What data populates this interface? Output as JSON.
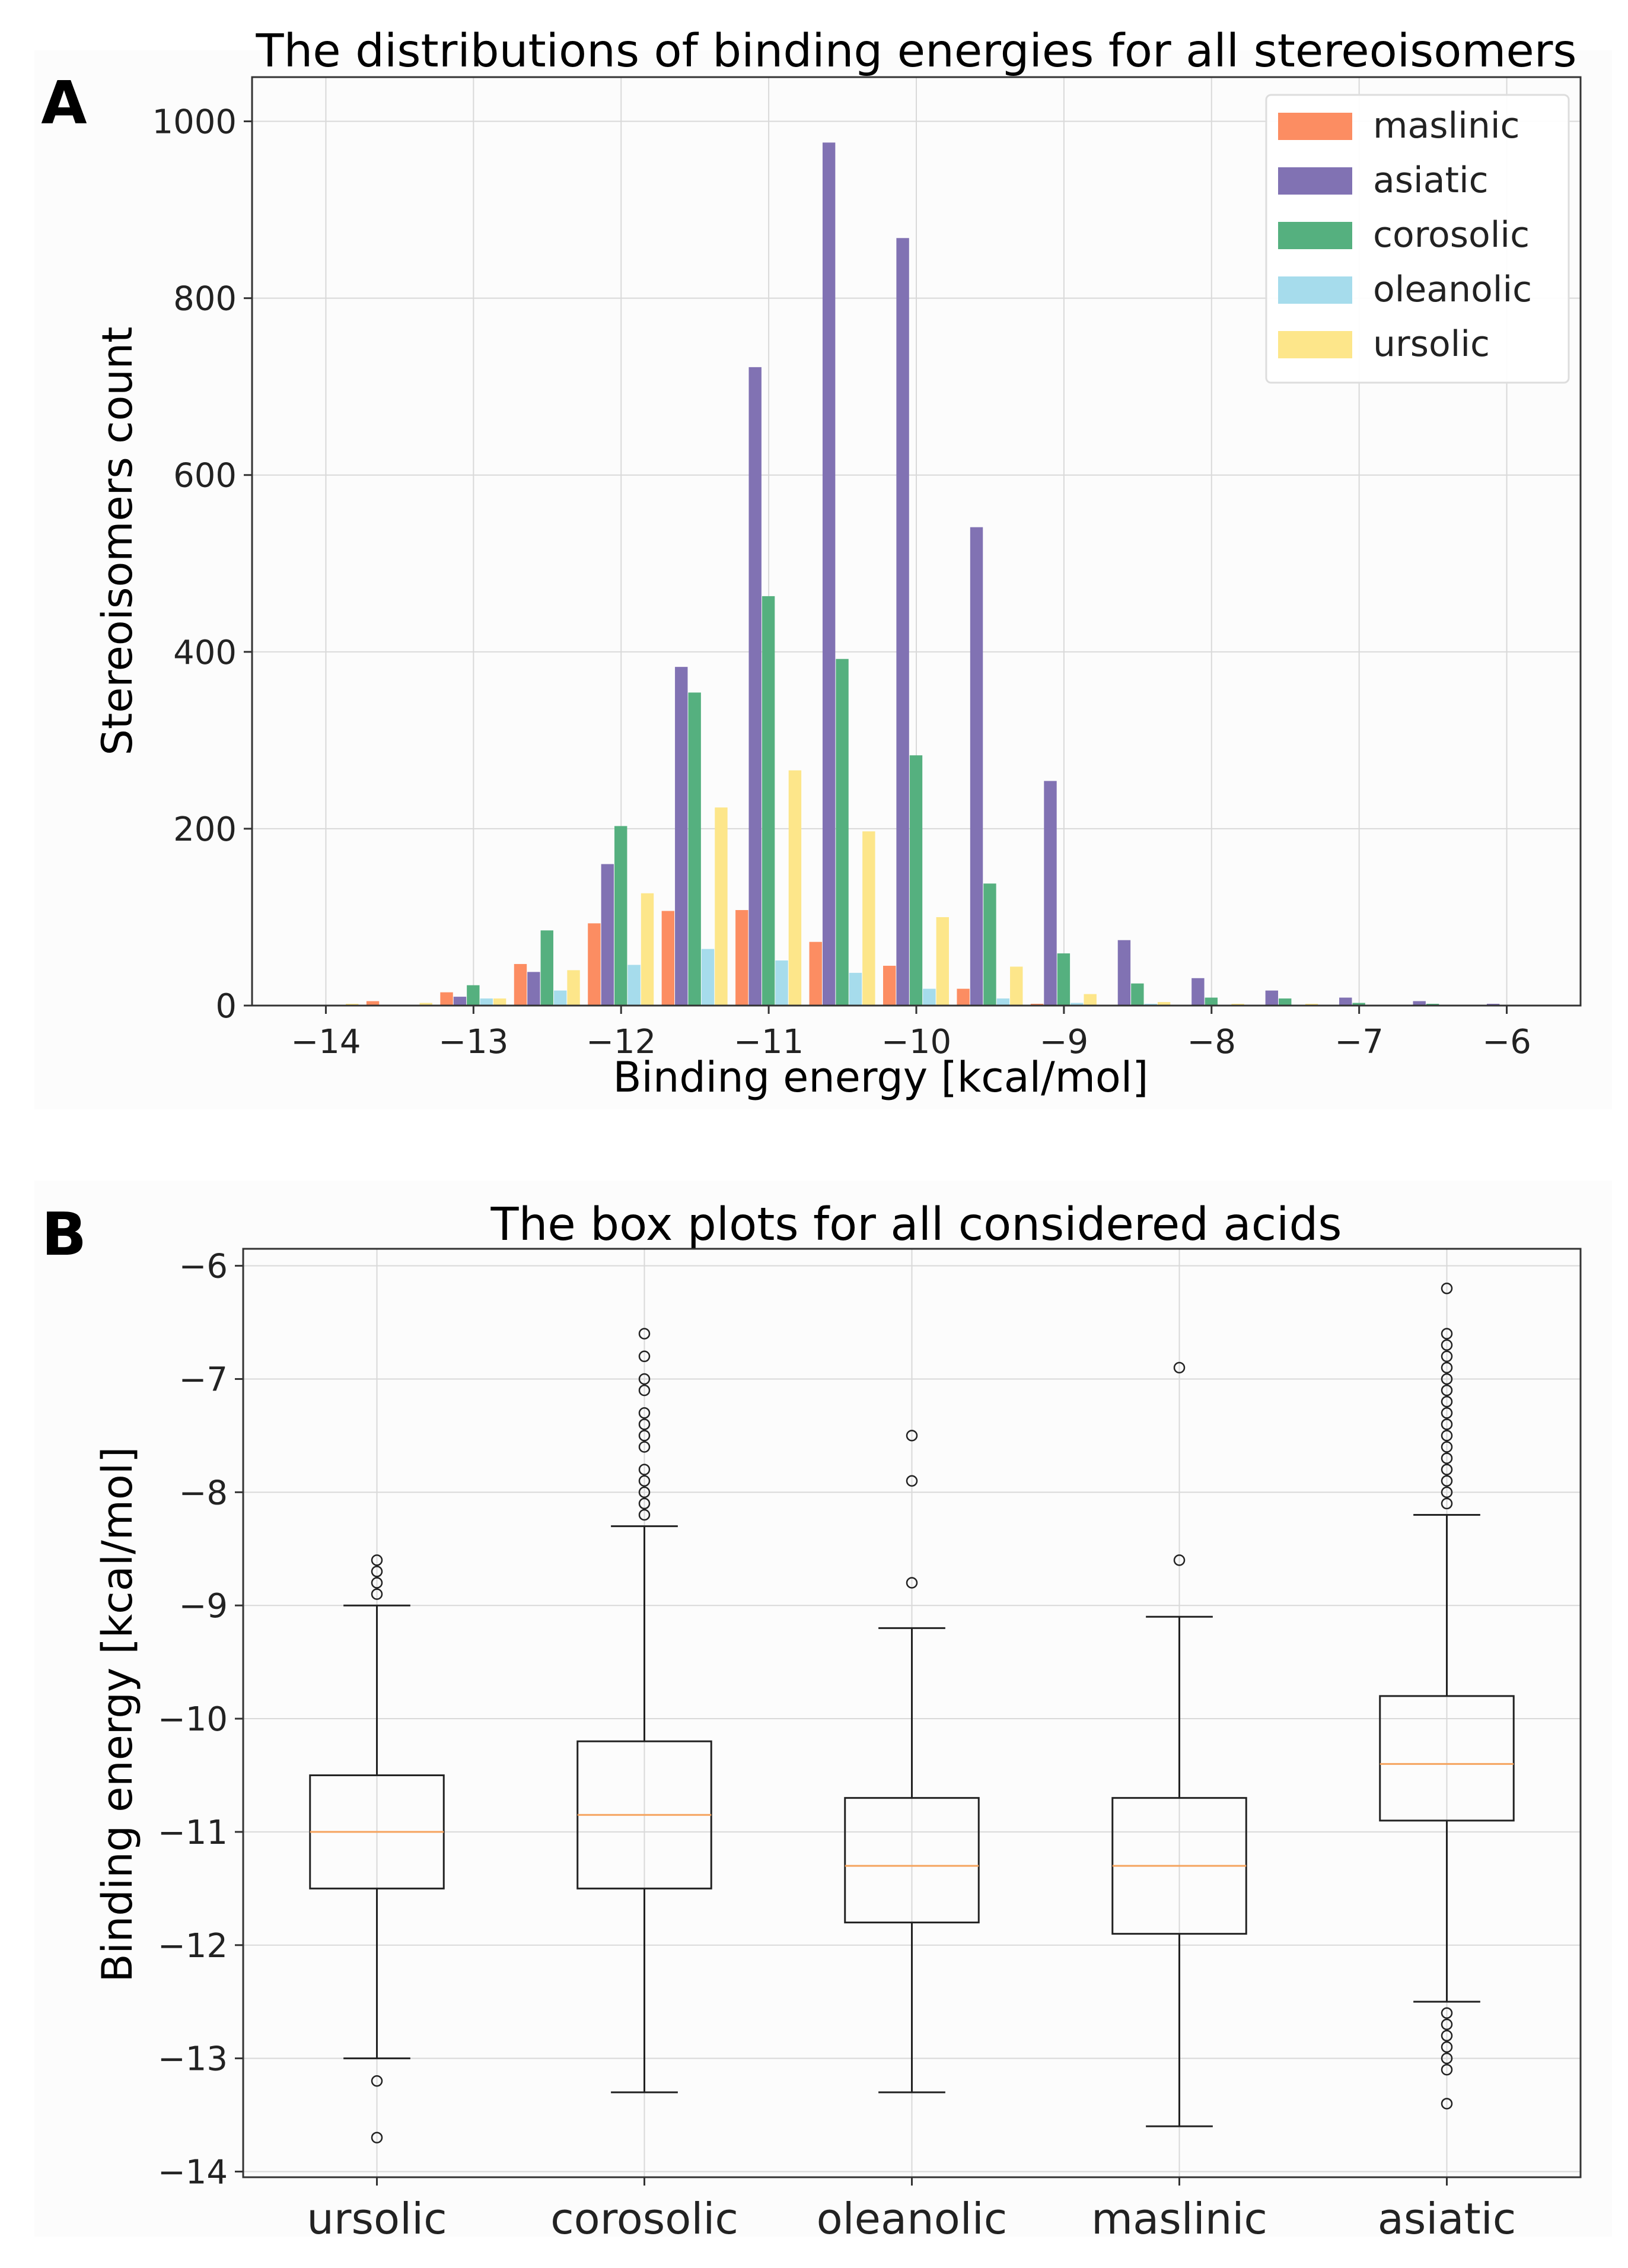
{
  "panel_labels": [
    "A",
    "B"
  ],
  "chart_data": [
    {
      "type": "bar",
      "title": "The distributions of binding energies for all stereoisomers",
      "xlabel": "Binding energy [kcal/mol]",
      "ylabel": "Stereoisomers count",
      "xlim": [
        -14.5,
        -5.5
      ],
      "ylim": [
        0,
        1050
      ],
      "xticks": [
        -14,
        -13,
        -12,
        -11,
        -10,
        -9,
        -8,
        -7,
        -6
      ],
      "xtick_labels": [
        "−14",
        "−13",
        "−12",
        "−11",
        "−10",
        "−9",
        "−8",
        "−7",
        "−6"
      ],
      "yticks": [
        0,
        200,
        400,
        600,
        800,
        1000
      ],
      "ytick_labels": [
        "0",
        "200",
        "400",
        "600",
        "800",
        "1000"
      ],
      "grid": true,
      "legend_position": "top-right",
      "bins": [
        -14.0,
        -13.5,
        -13.0,
        -12.5,
        -12.0,
        -11.5,
        -11.0,
        -10.5,
        -10.0,
        -9.5,
        -9.0,
        -8.5,
        -8.0,
        -7.5,
        -7.0,
        -6.5,
        -6.0
      ],
      "series": [
        {
          "name": "maslinic",
          "color": "#fc8d62",
          "values": [
            0,
            5,
            15,
            47,
            93,
            107,
            108,
            72,
            45,
            19,
            2,
            0,
            0,
            0,
            0,
            0,
            0
          ]
        },
        {
          "name": "asiatic",
          "color": "#8172b3",
          "values": [
            0,
            0,
            10,
            38,
            160,
            383,
            722,
            976,
            868,
            541,
            254,
            74,
            31,
            17,
            9,
            5,
            2
          ]
        },
        {
          "name": "corosolic",
          "color": "#55b07f",
          "values": [
            0,
            0,
            23,
            85,
            203,
            354,
            463,
            392,
            283,
            138,
            59,
            25,
            9,
            8,
            3,
            2,
            1
          ]
        },
        {
          "name": "oleanolic",
          "color": "#a6dcec",
          "values": [
            0,
            0,
            8,
            17,
            46,
            64,
            51,
            37,
            19,
            8,
            3,
            2,
            1,
            0,
            0,
            0,
            0
          ]
        },
        {
          "name": "ursolic",
          "color": "#fde68a",
          "values": [
            2,
            3,
            8,
            40,
            127,
            224,
            266,
            197,
            100,
            44,
            13,
            4,
            2,
            2,
            1,
            1,
            1
          ]
        }
      ]
    },
    {
      "type": "box",
      "title": "The box plots for all considered acids",
      "xlabel": "",
      "ylabel": "Binding energy [kcal/mol]",
      "ylim": [
        -14.05,
        -5.85
      ],
      "yticks": [
        -14,
        -13,
        -12,
        -11,
        -10,
        -9,
        -8,
        -7,
        -6
      ],
      "ytick_labels": [
        "−14",
        "−13",
        "−12",
        "−11",
        "−10",
        "−9",
        "−8",
        "−7",
        "−6"
      ],
      "grid": true,
      "categories": [
        "ursolic",
        "corosolic",
        "oleanolic",
        "maslinic",
        "asiatic"
      ],
      "median_color": "#f5a45f",
      "boxes": [
        {
          "name": "ursolic",
          "whisker_low": -13.0,
          "q1": -11.5,
          "median": -11.0,
          "q3": -10.5,
          "whisker_high": -9.0,
          "outliers": [
            -8.6,
            -8.7,
            -8.8,
            -8.9,
            -13.2,
            -13.7
          ]
        },
        {
          "name": "corosolic",
          "whisker_low": -13.3,
          "q1": -11.5,
          "median": -10.85,
          "q3": -10.2,
          "whisker_high": -8.3,
          "outliers": [
            -6.6,
            -6.8,
            -7.0,
            -7.1,
            -7.3,
            -7.4,
            -7.5,
            -7.6,
            -7.8,
            -7.9,
            -8.0,
            -8.1,
            -8.2
          ]
        },
        {
          "name": "oleanolic",
          "whisker_low": -13.3,
          "q1": -11.8,
          "median": -11.3,
          "q3": -10.7,
          "whisker_high": -9.2,
          "outliers": [
            -7.5,
            -7.9,
            -8.8
          ]
        },
        {
          "name": "maslinic",
          "whisker_low": -13.6,
          "q1": -11.9,
          "median": -11.3,
          "q3": -10.7,
          "whisker_high": -9.1,
          "outliers": [
            -6.9,
            -8.6
          ]
        },
        {
          "name": "asiatic",
          "whisker_low": -12.5,
          "q1": -10.9,
          "median": -10.4,
          "q3": -9.8,
          "whisker_high": -8.2,
          "outliers": [
            -6.2,
            -6.6,
            -6.7,
            -6.8,
            -6.9,
            -7.0,
            -7.1,
            -7.2,
            -7.3,
            -7.4,
            -7.5,
            -7.6,
            -7.7,
            -7.8,
            -7.9,
            -8.0,
            -8.1,
            -12.6,
            -12.7,
            -12.8,
            -12.9,
            -13.0,
            -13.1,
            -13.4
          ]
        }
      ]
    }
  ]
}
